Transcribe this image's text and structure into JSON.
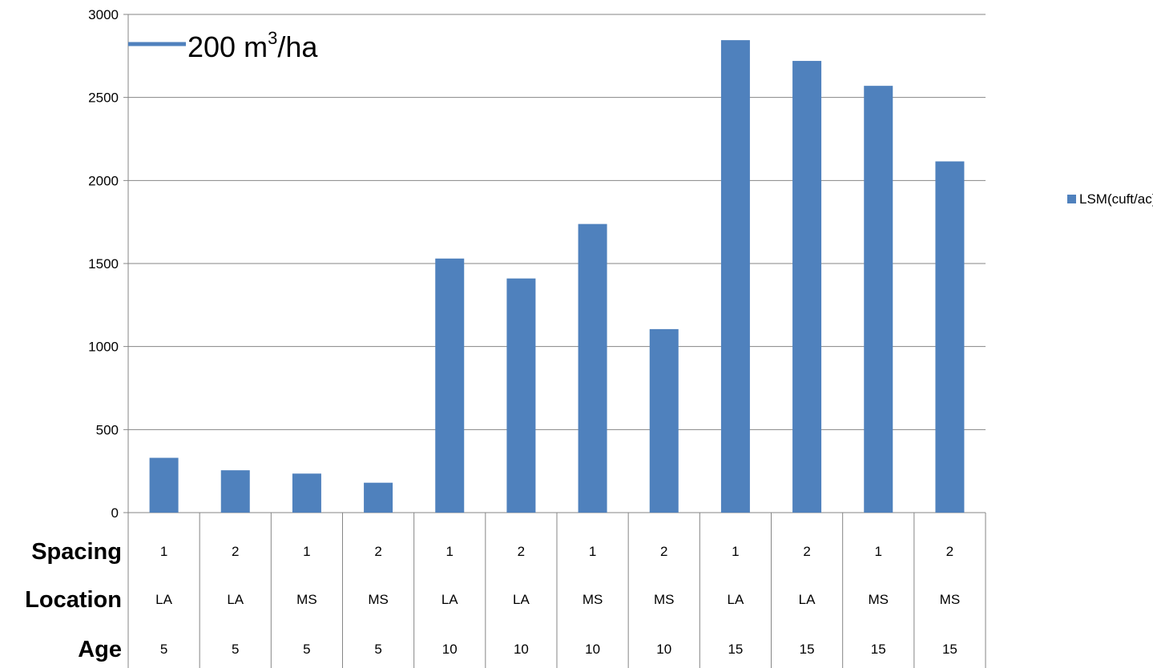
{
  "chart_data": {
    "type": "bar",
    "categories": [
      "1 / LA / 5",
      "2 / LA / 5",
      "1 / MS / 5",
      "2 / MS / 5",
      "1 / LA / 10",
      "2 / LA / 10",
      "1 / MS / 10",
      "2 / MS / 10",
      "1 / LA / 15",
      "2 / LA / 15",
      "1 / MS / 15",
      "2 / MS / 15"
    ],
    "series": [
      {
        "name": "LSM(cuft/ac)",
        "values": [
          330,
          255,
          235,
          180,
          1530,
          1410,
          1738,
          1105,
          2845,
          2720,
          2570,
          2115
        ]
      }
    ],
    "category_table": {
      "rows": [
        {
          "header": "Spacing",
          "values": [
            "1",
            "2",
            "1",
            "2",
            "1",
            "2",
            "1",
            "2",
            "1",
            "2",
            "1",
            "2"
          ]
        },
        {
          "header": "Location",
          "values": [
            "LA",
            "LA",
            "MS",
            "MS",
            "LA",
            "LA",
            "MS",
            "MS",
            "LA",
            "LA",
            "MS",
            "MS"
          ]
        },
        {
          "header": "Age",
          "values": [
            "5",
            "5",
            "5",
            "5",
            "10",
            "10",
            "10",
            "10",
            "15",
            "15",
            "15",
            "15"
          ]
        }
      ]
    },
    "yticks": [
      "0",
      "500",
      "1000",
      "1500",
      "2000",
      "2500",
      "3000"
    ],
    "ylim": [
      0,
      3000
    ],
    "grid": true,
    "legend": {
      "position": "right",
      "label": "LSM(cuft/ac)"
    },
    "annotation": {
      "text": "200 m",
      "superscript": "3",
      "suffix": "/ha",
      "value": 200
    },
    "colors": {
      "bar": "#4f81bd",
      "annotation_line": "#4f81bd",
      "grid": "#868686"
    }
  }
}
